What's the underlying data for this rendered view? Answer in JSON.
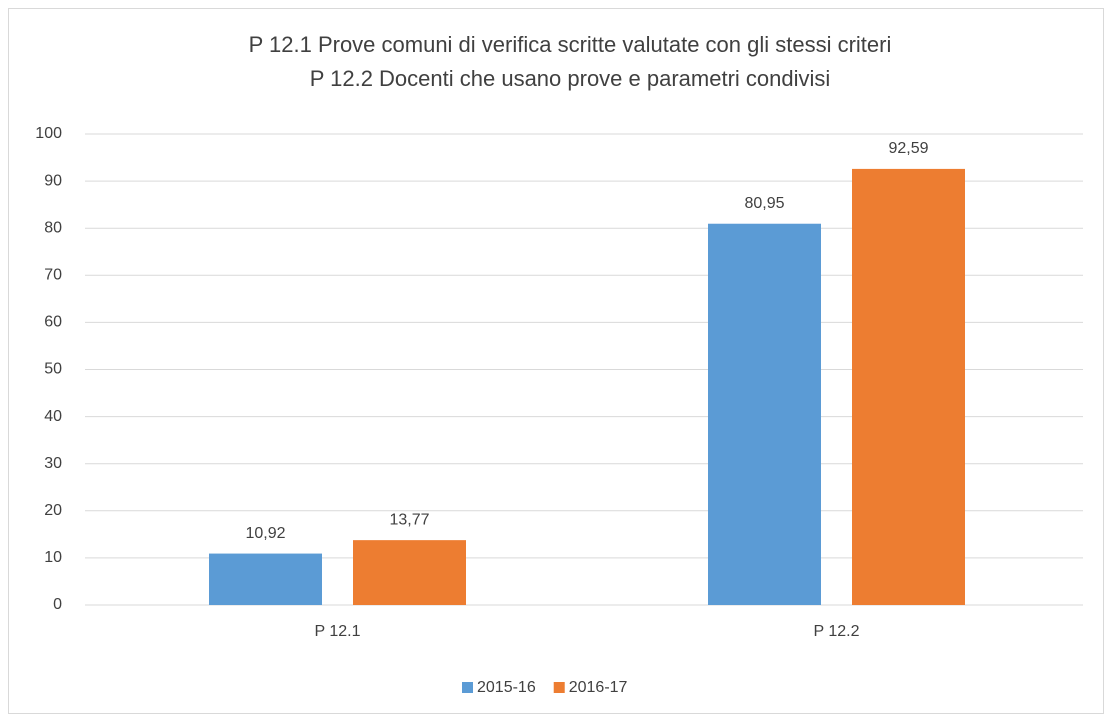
{
  "chart_data": {
    "type": "bar",
    "title": [
      "P 12.1 Prove comuni di verifica scritte valutate con gli stessi criteri",
      "P 12.2 Docenti che usano prove e parametri condivisi"
    ],
    "categories": [
      "P 12.1",
      "P 12.2"
    ],
    "series": [
      {
        "name": "2015-16",
        "color": "#5b9bd5",
        "values": [
          10.92,
          80.95
        ],
        "value_labels": [
          "10,92",
          "80,95"
        ]
      },
      {
        "name": "2016-17",
        "color": "#ed7d31",
        "values": [
          13.77,
          92.59
        ],
        "value_labels": [
          "13,77",
          "92,59"
        ]
      }
    ],
    "ylim": [
      0,
      100
    ],
    "yticks": [
      0,
      10,
      20,
      30,
      40,
      50,
      60,
      70,
      80,
      90,
      100
    ],
    "grid": true,
    "legend": "bottom"
  }
}
